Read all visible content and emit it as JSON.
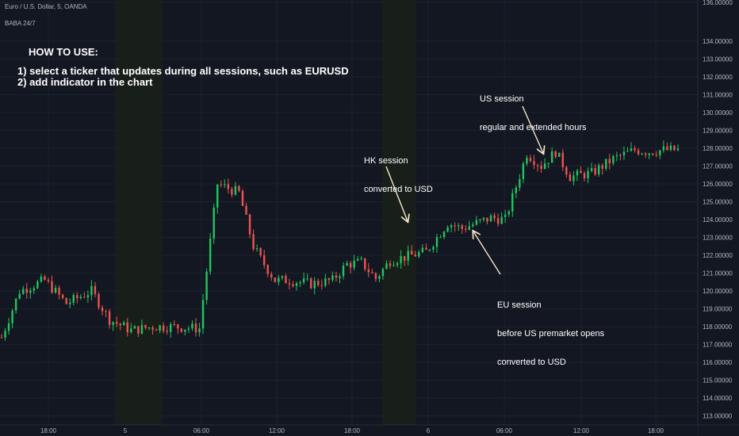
{
  "header": {
    "symbol_line": "Euro / U.S. Dollar, 5, OANDA",
    "indicator_label": "BABA 24/7"
  },
  "instructions": {
    "title": "HOW TO USE:",
    "step1": "1) select a ticker that updates during all sessions, such as EURUSD",
    "step2": "2) add indicator in the chart"
  },
  "annotations": {
    "hk_line1": "HK session",
    "hk_line2": "converted to USD",
    "us_line1": "US session",
    "us_line2": "regular and extended hours",
    "eu_line1": "EU session",
    "eu_line2": "before US premarket opens",
    "eu_line3": "converted to USD"
  },
  "colors": {
    "background": "#131722",
    "up": "#26a69a",
    "up_bright": "#22c55e",
    "down": "#ef5350",
    "grid": "#1e222d",
    "session_shade": "#1a2019",
    "axis_text": "#b2b5be"
  },
  "chart_data": {
    "type": "candlestick",
    "title": "",
    "y_axis": {
      "position": "right",
      "range": [
        112.5,
        136.3
      ],
      "tick_labels": [
        "113.00000",
        "114.00000",
        "115.00000",
        "116.00000",
        "117.00000",
        "118.00000",
        "119.00000",
        "120.00000",
        "121.00000",
        "122.00000",
        "123.00000",
        "124.00000",
        "125.00000",
        "126.00000",
        "127.00000",
        "128.00000",
        "129.00000",
        "130.00000",
        "131.00000",
        "132.00000",
        "133.00000",
        "134.00000",
        "136.00000"
      ]
    },
    "x_axis": {
      "tick_labels": [
        "18:00",
        "5",
        "06:00",
        "12:00",
        "18:00",
        "6",
        "06:00",
        "12:00",
        "18:00"
      ]
    },
    "grid": true,
    "session_shading": [
      "HK session"
    ],
    "price_path": {
      "description_points_x_index": [
        0,
        5,
        12,
        18,
        25,
        30,
        36,
        42,
        48,
        55,
        60,
        66,
        70,
        72,
        76,
        80,
        86,
        92,
        96,
        100,
        104,
        108,
        112,
        118,
        124,
        128,
        132,
        136,
        140,
        146,
        150,
        154,
        158,
        164,
        170,
        176,
        180,
        184,
        188
      ],
      "close": [
        117.4,
        120.0,
        120.6,
        119.3,
        120.0,
        118.4,
        117.8,
        118.0,
        118.0,
        117.9,
        126.0,
        125.5,
        122.5,
        121.8,
        120.6,
        120.6,
        120.4,
        120.6,
        121.5,
        121.6,
        120.7,
        121.7,
        121.9,
        122.2,
        123.8,
        123.5,
        123.8,
        124.1,
        124.0,
        127.7,
        127.0,
        127.8,
        126.4,
        126.6,
        127.4,
        127.9,
        127.8,
        127.9,
        127.9
      ]
    }
  }
}
